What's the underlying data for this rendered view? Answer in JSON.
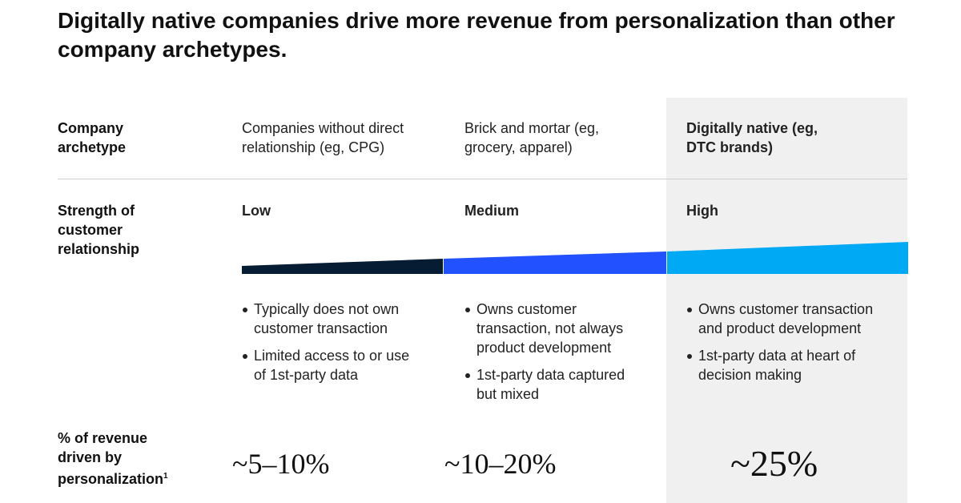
{
  "title": "Digitally native companies drive more revenue from personalization than other company archetypes.",
  "row_labels": {
    "archetype": "Company archetype",
    "strength": "Strength of customer relationship",
    "revenue": "% of revenue driven by personalization",
    "revenue_footnote": "1"
  },
  "columns": [
    {
      "archetype": "Companies without direct relationship (eg, CPG)",
      "strength": "Low",
      "bullets": [
        "Typically does not own customer transaction",
        "Limited access to or use of 1st-party data"
      ],
      "revenue": "~5–10%"
    },
    {
      "archetype": "Brick and mortar (eg, grocery, apparel)",
      "strength": "Medium",
      "bullets": [
        "Owns customer transaction, not always product development",
        "1st-party data captured but mixed"
      ],
      "revenue": "~10–20%"
    },
    {
      "archetype": "Digitally native (eg, DTC brands)",
      "strength": "High",
      "bullets": [
        "Owns customer transaction and product development",
        "1st-party data at heart of decision making"
      ],
      "revenue": "~25%"
    }
  ]
}
